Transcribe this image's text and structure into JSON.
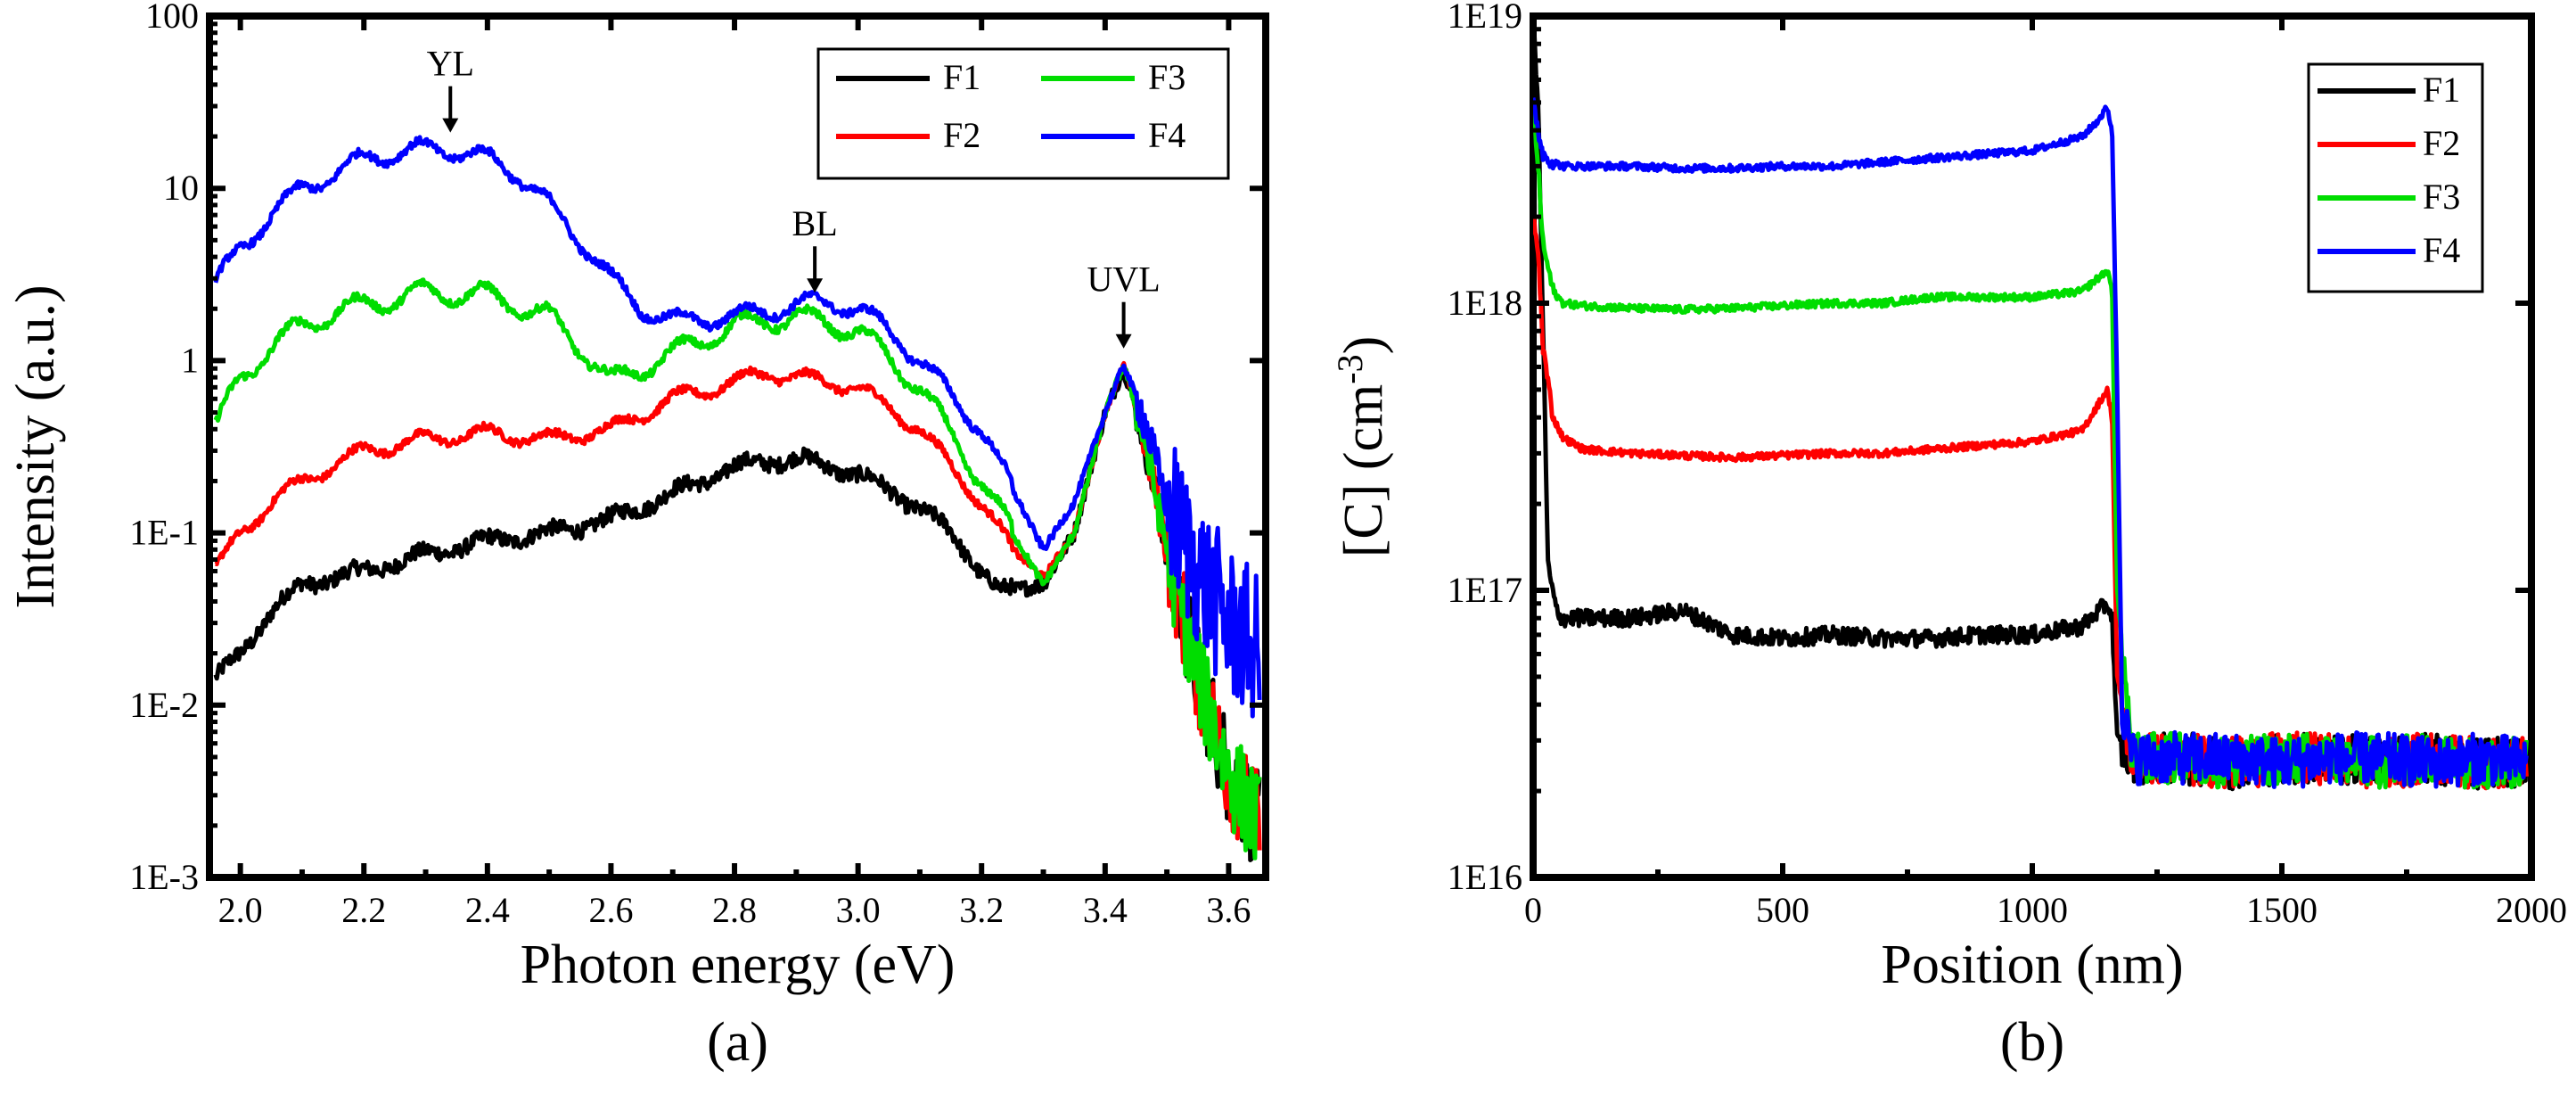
{
  "chart_data": [
    {
      "type": "line",
      "panel_label": "(a)",
      "xlabel": "Photon energy (eV)",
      "ylabel": "Intensity (a.u.)",
      "yscale": "log",
      "xlim": [
        1.95,
        3.66
      ],
      "ylim": [
        0.001,
        100
      ],
      "x_ticks": [
        2.0,
        2.2,
        2.4,
        2.6,
        2.8,
        3.0,
        3.2,
        3.4,
        3.6
      ],
      "x_tick_labels": [
        "2.0",
        "2.2",
        "2.4",
        "2.6",
        "2.8",
        "3.0",
        "3.2",
        "3.4",
        "3.6"
      ],
      "y_ticks": [
        0.001,
        0.01,
        0.1,
        1,
        10,
        100
      ],
      "y_tick_labels": [
        "1E-3",
        "1E-2",
        "1E-1",
        "1",
        "10",
        "100"
      ],
      "legend_position": "top-right",
      "legend_entries": [
        "F1",
        "F2",
        "F3",
        "F4"
      ],
      "annotations": [
        {
          "text": "YL",
          "x": 2.34,
          "y": 17
        },
        {
          "text": "BL",
          "x": 2.93,
          "y": 2.0
        },
        {
          "text": "UVL",
          "x": 3.43,
          "y": 0.95
        }
      ],
      "series": [
        {
          "name": "F1",
          "color": "#000000",
          "x": [
            1.96,
            2.0,
            2.05,
            2.1,
            2.15,
            2.2,
            2.3,
            2.4,
            2.5,
            2.6,
            2.7,
            2.8,
            2.85,
            2.9,
            3.0,
            3.1,
            3.15,
            3.2,
            3.23,
            3.3,
            3.35,
            3.4,
            3.43,
            3.46,
            3.5,
            3.55,
            3.6,
            3.65
          ],
          "y": [
            0.014,
            0.02,
            0.035,
            0.05,
            0.055,
            0.06,
            0.075,
            0.09,
            0.1,
            0.12,
            0.17,
            0.24,
            0.26,
            0.27,
            0.22,
            0.14,
            0.1,
            0.06,
            0.045,
            0.05,
            0.1,
            0.5,
            0.9,
            0.4,
            0.08,
            0.015,
            0.004,
            0.002
          ]
        },
        {
          "name": "F2",
          "color": "#ff0000",
          "x": [
            1.96,
            2.0,
            2.05,
            2.1,
            2.2,
            2.3,
            2.4,
            2.5,
            2.6,
            2.7,
            2.8,
            2.85,
            2.9,
            3.0,
            3.1,
            3.2,
            3.25,
            3.3,
            3.35,
            3.4,
            3.43,
            3.46,
            3.5,
            3.55,
            3.6,
            3.65
          ],
          "y": [
            0.06,
            0.1,
            0.15,
            0.2,
            0.3,
            0.35,
            0.38,
            0.35,
            0.4,
            0.6,
            0.75,
            0.85,
            0.8,
            0.7,
            0.4,
            0.15,
            0.08,
            0.055,
            0.1,
            0.5,
            0.95,
            0.4,
            0.08,
            0.015,
            0.004,
            0.002
          ]
        },
        {
          "name": "F3",
          "color": "#00dd00",
          "x": [
            1.96,
            2.0,
            2.05,
            2.1,
            2.15,
            2.2,
            2.3,
            2.4,
            2.5,
            2.55,
            2.6,
            2.7,
            2.8,
            2.9,
            3.0,
            3.1,
            3.2,
            3.3,
            3.35,
            3.4,
            3.43,
            3.46,
            3.5,
            3.55,
            3.6,
            3.65
          ],
          "y": [
            0.4,
            0.8,
            1.2,
            1.6,
            1.9,
            2.1,
            2.5,
            2.4,
            1.8,
            1.2,
            0.75,
            1.1,
            1.6,
            1.8,
            1.5,
            0.7,
            0.2,
            0.05,
            0.1,
            0.5,
            0.95,
            0.4,
            0.08,
            0.015,
            0.004,
            0.002
          ]
        },
        {
          "name": "F4",
          "color": "#0000ff",
          "x": [
            1.96,
            2.0,
            2.05,
            2.1,
            2.15,
            2.2,
            2.25,
            2.3,
            2.35,
            2.4,
            2.45,
            2.5,
            2.55,
            2.6,
            2.65,
            2.7,
            2.8,
            2.9,
            2.95,
            3.0,
            3.05,
            3.1,
            3.2,
            3.3,
            3.35,
            3.4,
            3.43,
            3.46,
            3.5,
            3.55,
            3.6,
            3.65
          ],
          "y": [
            2.8,
            4.5,
            7,
            10,
            12,
            15,
            16,
            17,
            16.5,
            15,
            12,
            8,
            5,
            3,
            2,
            1.7,
            1.8,
            2.1,
            2.2,
            2.0,
            1.5,
            1.0,
            0.4,
            0.08,
            0.15,
            0.5,
            0.95,
            0.5,
            0.15,
            0.06,
            0.03,
            0.02
          ]
        }
      ]
    },
    {
      "type": "line",
      "panel_label": "(b)",
      "xlabel": "Position (nm)",
      "ylabel_main": "[C] (cm",
      "ylabel_sup": "-3",
      "ylabel_close": ")",
      "yscale": "log",
      "xlim": [
        0,
        2000
      ],
      "ylim": [
        1e+16,
        1e+19
      ],
      "x_ticks": [
        0,
        500,
        1000,
        1500,
        2000
      ],
      "x_tick_labels": [
        "0",
        "500",
        "1000",
        "1500",
        "2000"
      ],
      "y_ticks": [
        1e+16,
        1e+17,
        1e+18,
        1e+19
      ],
      "y_tick_labels": [
        "1E16",
        "1E17",
        "1E18",
        "1E19"
      ],
      "legend_position": "top-right",
      "legend_entries": [
        "F1",
        "F2",
        "F3",
        "F4"
      ],
      "series": [
        {
          "name": "F1",
          "color": "#000000",
          "x": [
            0,
            10,
            20,
            30,
            50,
            100,
            200,
            300,
            400,
            500,
            600,
            700,
            800,
            900,
            1000,
            1100,
            1150,
            1160,
            1170,
            1200,
            1300,
            1400,
            1500,
            1600,
            1700,
            1800,
            1900,
            1990
          ],
          "y": [
            1e+19,
            5e+18,
            8e+17,
            1.2e+17,
            8e+16,
            8e+16,
            8e+16,
            8.5e+16,
            7e+16,
            6.8e+16,
            7e+16,
            6.8e+16,
            6.8e+16,
            7e+16,
            7e+16,
            7.5e+16,
            9e+16,
            8e+16,
            3e+16,
            2.6e+16,
            2.6e+16,
            2.5e+16,
            2.6e+16,
            2.6e+16,
            2.5e+16,
            2.6e+16,
            2.5e+16,
            2.5e+16
          ]
        },
        {
          "name": "F2",
          "color": "#ff0000",
          "x": [
            0,
            10,
            20,
            40,
            60,
            100,
            200,
            300,
            400,
            500,
            600,
            700,
            800,
            900,
            1000,
            1100,
            1150,
            1160,
            1170,
            1200,
            1300,
            1400,
            1500,
            1600,
            1700,
            1800,
            1900,
            1990
          ],
          "y": [
            2e+18,
            1.5e+18,
            7e+17,
            4e+17,
            3.4e+17,
            3.1e+17,
            3e+17,
            2.95e+17,
            2.9e+17,
            2.95e+17,
            3e+17,
            3e+17,
            3.1e+17,
            3.2e+17,
            3.3e+17,
            3.6e+17,
            5e+17,
            4e+17,
            5e+16,
            2.6e+16,
            2.6e+16,
            2.5e+16,
            2.6e+16,
            2.6e+16,
            2.5e+16,
            2.6e+16,
            2.5e+16,
            2.5e+16
          ]
        },
        {
          "name": "F3",
          "color": "#00dd00",
          "x": [
            0,
            10,
            20,
            40,
            60,
            100,
            200,
            300,
            400,
            500,
            600,
            700,
            800,
            900,
            1000,
            1100,
            1150,
            1160,
            1170,
            1200,
            1300,
            1400,
            1500,
            1600,
            1700,
            1800,
            1900,
            1990
          ],
          "y": [
            5e+18,
            3e+18,
            1.6e+18,
            1.1e+18,
            1e+18,
            9.8e+17,
            9.6e+17,
            9.5e+17,
            9.6e+17,
            9.8e+17,
            1e+18,
            1e+18,
            1.05e+18,
            1.05e+18,
            1.05e+18,
            1.1e+18,
            1.3e+18,
            1.1e+18,
            1e+17,
            2.6e+16,
            2.6e+16,
            2.5e+16,
            2.6e+16,
            2.6e+16,
            2.5e+16,
            2.6e+16,
            2.5e+16,
            2.5e+16
          ]
        },
        {
          "name": "F4",
          "color": "#0000ff",
          "x": [
            0,
            10,
            20,
            40,
            60,
            100,
            200,
            300,
            400,
            500,
            600,
            700,
            800,
            900,
            1000,
            1050,
            1100,
            1130,
            1150,
            1160,
            1170,
            1180,
            1200,
            1300,
            1400,
            1500,
            1600,
            1700,
            1800,
            1900,
            1990
          ],
          "y": [
            5e+18,
            4e+18,
            3.3e+18,
            3.1e+18,
            3e+18,
            3e+18,
            3e+18,
            2.95e+18,
            2.95e+18,
            3e+18,
            3e+18,
            3.1e+18,
            3.2e+18,
            3.3e+18,
            3.4e+18,
            3.6e+18,
            3.8e+18,
            4.3e+18,
            4.8e+18,
            4e+18,
            5e+17,
            4e+16,
            2.6e+16,
            2.6e+16,
            2.6e+16,
            2.5e+16,
            2.6e+16,
            2.6e+16,
            2.5e+16,
            2.6e+16,
            2.5e+16
          ]
        }
      ]
    }
  ]
}
